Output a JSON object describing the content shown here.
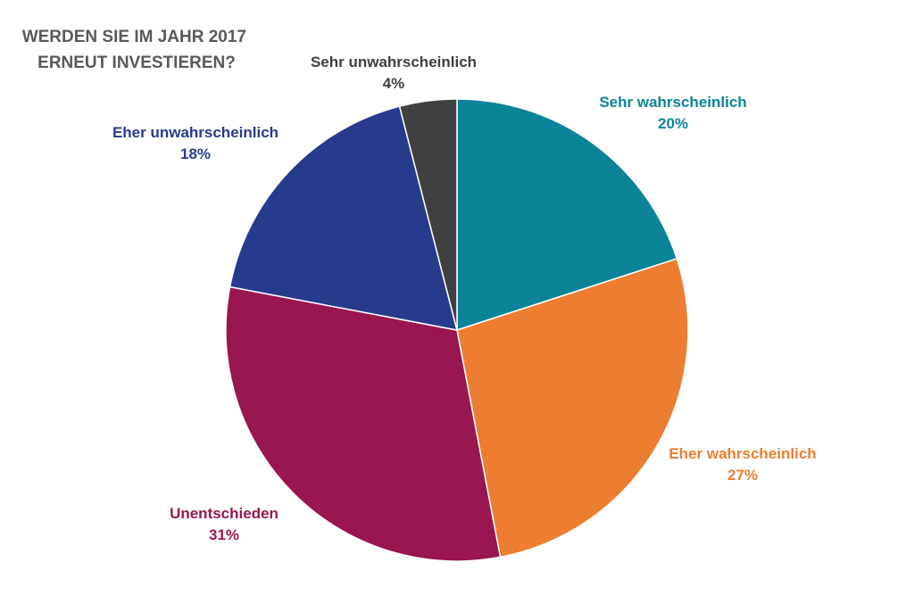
{
  "chart_data": {
    "type": "pie",
    "title_lines": [
      "WERDEN SIE IM JAHR 2017",
      "ERNEUT INVESTIEREN?"
    ],
    "start_angle_deg": 0,
    "direction": "clockwise",
    "slices": [
      {
        "label": "Sehr wahrscheinlich",
        "value": 20,
        "value_label": "20%",
        "color": "#0b8499"
      },
      {
        "label": "Eher wahrscheinlich",
        "value": 27,
        "value_label": "27%",
        "color": "#ed7d31"
      },
      {
        "label": "Unentschieden",
        "value": 31,
        "value_label": "31%",
        "color": "#991650"
      },
      {
        "label": "Eher unwahrscheinlich",
        "value": 18,
        "value_label": "18%",
        "color": "#283a8c"
      },
      {
        "label": "Sehr unwahrscheinlich",
        "value": 4,
        "value_label": "4%",
        "color": "#404040"
      }
    ]
  }
}
